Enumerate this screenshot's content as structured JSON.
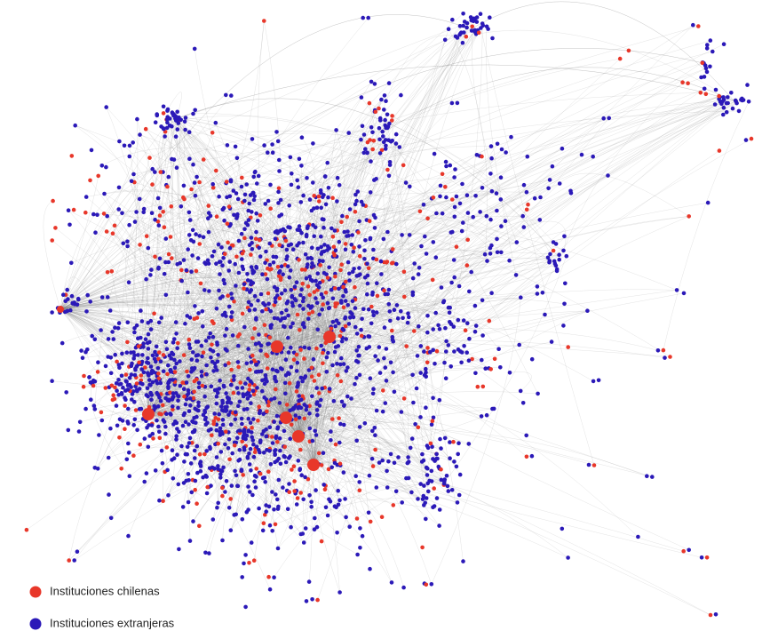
{
  "legend": [
    {
      "label": "Instituciones chilenas",
      "color": "#e8372a"
    },
    {
      "label": "Instituciones extranjeras",
      "color": "#2b19b8"
    }
  ]
}
